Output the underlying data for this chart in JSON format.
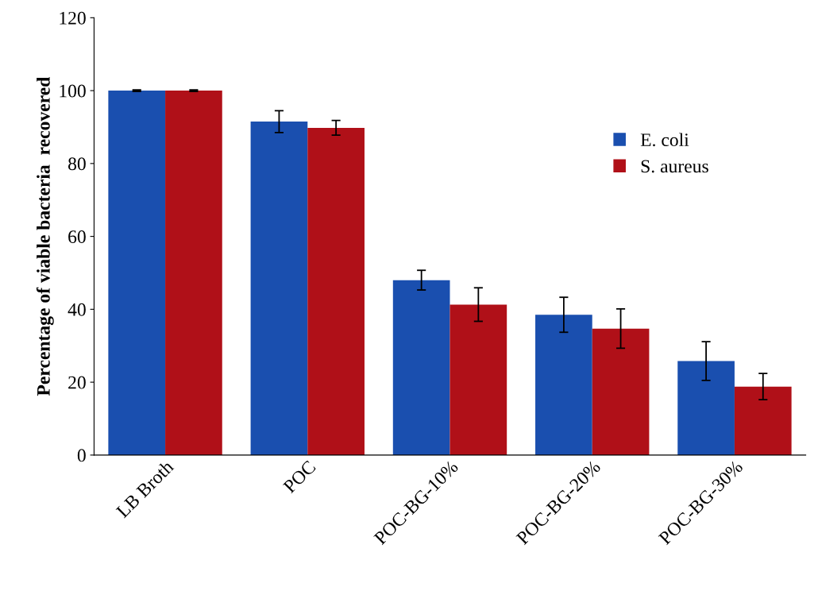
{
  "chart_data": {
    "type": "bar",
    "ylabel": "Percentage of viable bacteria  recovered",
    "categories": [
      "LB Broth",
      "POC",
      "POC-BG-10%",
      "POC-BG-20%",
      "POC-BG-30%"
    ],
    "series": [
      {
        "name": "E. coli",
        "color": "#1a4faf",
        "values": [
          100,
          91.5,
          48,
          38.5,
          25.8
        ],
        "errors": [
          0.2,
          3,
          2.7,
          4.8,
          5.3
        ]
      },
      {
        "name": "S. aureus",
        "color": "#b01018",
        "values": [
          100,
          89.8,
          41.3,
          34.7,
          18.8
        ],
        "errors": [
          0.2,
          2,
          4.6,
          5.4,
          3.6
        ]
      }
    ],
    "ylim": [
      0,
      120
    ],
    "yticks": [
      0,
      20,
      40,
      60,
      80,
      100,
      120
    ],
    "grid": false,
    "legend": "top right"
  }
}
